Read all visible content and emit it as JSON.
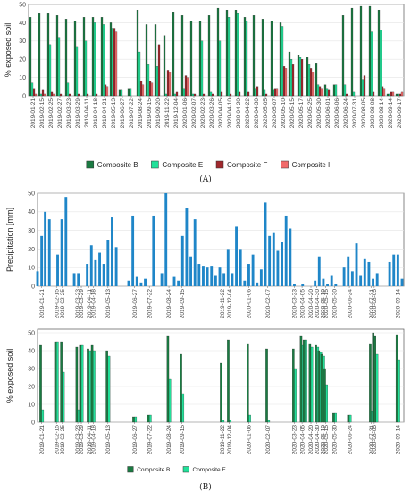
{
  "figure": {
    "panel_a_label": "(A)",
    "panel_b_label": "(B)"
  },
  "chart_data": [
    {
      "type": "bar",
      "id": "A",
      "ylabel": "% exposed soil",
      "xlabel": "",
      "ylim": [
        0,
        50
      ],
      "yticks": [
        0,
        10,
        20,
        30,
        40,
        50
      ],
      "grid": true,
      "legend_position": "bottom",
      "categories": [
        "2019-01-21",
        "2019-02-15",
        "2019-02-25",
        "2019-02-27",
        "2019-03-23",
        "2019-03-29",
        "2019-04-11",
        "2019-04-18",
        "2019-04-21",
        "2019-05-13",
        "2019-06-27",
        "2019-07-22",
        "2019-08-24",
        "2019-09-15",
        "2019-09-20",
        "2019-11-22",
        "2019-12-04",
        "2020-01-06",
        "2020-02-07",
        "2020-02-23",
        "2020-03-26",
        "2020-04-05",
        "2020-04-10",
        "2020-04-20",
        "2020-04-22",
        "2020-04-30",
        "2020-05-05",
        "2020-05-07",
        "2020-05-10",
        "2020-05-15",
        "2020-05-17",
        "2020-05-25",
        "2020-05-30",
        "2020-06-01",
        "2020-06-06",
        "2020-06-24",
        "2020-07-31",
        "2020-08-05",
        "2020-08-08",
        "2020-08-14",
        "2020-09-14",
        "2020-09-17"
      ],
      "series": [
        {
          "name": "Composite B",
          "color": "#1b7a42",
          "values": [
            43,
            45,
            45,
            44,
            42,
            41,
            43,
            43,
            43,
            40,
            3,
            4,
            47,
            39,
            39,
            33,
            46,
            44,
            41,
            41,
            44,
            48,
            47,
            47,
            43,
            44,
            42,
            41,
            40,
            24,
            22,
            21,
            18,
            6,
            6,
            44,
            48,
            49,
            49,
            47,
            1,
            1
          ]
        },
        {
          "name": "Composite E",
          "color": "#22e19a",
          "values": [
            7,
            1,
            28,
            32,
            7,
            27,
            30,
            40,
            39,
            37,
            3,
            4,
            24,
            17,
            16,
            1,
            1,
            4,
            1,
            30,
            2,
            30,
            43,
            45,
            41,
            4,
            3,
            3,
            38,
            20,
            21,
            17,
            6,
            4,
            6,
            6,
            2,
            9,
            35,
            36,
            1,
            1
          ]
        },
        {
          "name": "Composite F",
          "color": "#a0282d",
          "values": [
            4,
            3,
            2,
            1,
            1,
            1,
            1,
            1,
            6,
            37,
            0,
            0,
            8,
            8,
            28,
            14,
            2,
            11,
            1,
            1,
            1,
            2,
            1,
            2,
            2,
            5,
            1,
            4,
            16,
            17,
            20,
            15,
            5,
            3,
            0,
            1,
            0,
            11,
            2,
            5,
            2,
            1
          ]
        },
        {
          "name": "Composite I",
          "color": "#f26b6b",
          "values": [
            1,
            1,
            1,
            0,
            0,
            0,
            0,
            0,
            5,
            35,
            0,
            0,
            6,
            7,
            0,
            13,
            0,
            10,
            0,
            0,
            0,
            0,
            0,
            0,
            0,
            0,
            0,
            4,
            15,
            0,
            0,
            13,
            4,
            0,
            0,
            0,
            0,
            0,
            0,
            4,
            2,
            2
          ]
        }
      ],
      "x_tick_labels": [
        "2019-01-21",
        "2019-02-15",
        "2019-02-25",
        "2019-02-27",
        "2019-03-23",
        "2019-03-29",
        "2019-04-11",
        "2019-04-18",
        "2019-04-21",
        "2019-05-13",
        "2019-06-27",
        "2019-07-22",
        "2019-08-24",
        "2019-09-15",
        "2019-09-20",
        "2019-11-22",
        "2019-12-04",
        "2020-01-06",
        "2020-02-07",
        "2020-02-23",
        "2020-03-26",
        "2020-04-05",
        "2020-04-10",
        "2020-04-20",
        "2020-04-22",
        "2020-04-30",
        "2020-05-05",
        "2020-05-07",
        "2020-05-10",
        "2020-05-15",
        "2020-05-17",
        "2020-05-25",
        "2020-05-30",
        "2020-06-01",
        "2020-06-06",
        "2020-06-24",
        "2020-07-31",
        "2020-08-05",
        "2020-08-08",
        "2020-08-14",
        "2020-09-14",
        "2020-09-17"
      ]
    },
    {
      "type": "bar",
      "id": "B-precip",
      "ylabel": "Precipitation [mm]",
      "xlabel": "",
      "ylim": [
        0,
        50
      ],
      "yticks": [
        0,
        10,
        20,
        30,
        40,
        50
      ],
      "grid": true,
      "color": "#1f86c8",
      "x_start": "2019-01-14",
      "x_end": "2020-09-24",
      "dates": [
        "2019-01-14",
        "2019-01-21",
        "2019-01-27",
        "2019-02-03",
        "2019-02-10",
        "2019-02-17",
        "2019-02-24",
        "2019-03-03",
        "2019-03-10",
        "2019-03-17",
        "2019-03-24",
        "2019-04-01",
        "2019-04-08",
        "2019-04-15",
        "2019-04-22",
        "2019-04-29",
        "2019-05-06",
        "2019-05-13",
        "2019-05-20",
        "2019-05-27",
        "2019-06-03",
        "2019-06-10",
        "2019-06-17",
        "2019-06-24",
        "2019-07-01",
        "2019-07-08",
        "2019-07-15",
        "2019-07-22",
        "2019-07-29",
        "2019-08-05",
        "2019-08-12",
        "2019-08-19",
        "2019-08-26",
        "2019-09-02",
        "2019-09-09",
        "2019-09-16",
        "2019-09-23",
        "2019-09-30",
        "2019-10-07",
        "2019-10-14",
        "2019-10-21",
        "2019-10-28",
        "2019-11-04",
        "2019-11-11",
        "2019-11-18",
        "2019-11-25",
        "2019-12-02",
        "2019-12-09",
        "2019-12-16",
        "2019-12-23",
        "2019-12-30",
        "2020-01-06",
        "2020-01-13",
        "2020-01-20",
        "2020-01-27",
        "2020-02-03",
        "2020-02-10",
        "2020-02-17",
        "2020-02-24",
        "2020-03-02",
        "2020-03-09",
        "2020-03-16",
        "2020-03-23",
        "2020-03-30",
        "2020-04-06",
        "2020-04-13",
        "2020-04-20",
        "2020-04-27",
        "2020-05-04",
        "2020-05-11",
        "2020-05-18",
        "2020-05-25",
        "2020-06-01",
        "2020-06-08",
        "2020-06-15",
        "2020-06-22",
        "2020-06-29",
        "2020-07-06",
        "2020-07-13",
        "2020-07-20",
        "2020-07-27",
        "2020-08-03",
        "2020-08-10",
        "2020-08-17",
        "2020-08-24",
        "2020-08-31",
        "2020-09-07",
        "2020-09-14",
        "2020-09-21"
      ],
      "values": [
        8,
        27,
        40,
        36,
        0,
        17,
        36,
        48,
        0,
        7,
        7,
        0,
        12,
        22,
        14,
        18,
        12,
        25,
        37,
        21,
        0,
        0,
        3,
        38,
        5,
        2,
        4,
        0,
        38,
        0,
        7,
        50,
        0,
        5,
        3,
        27,
        42,
        16,
        36,
        12,
        11,
        10,
        11,
        6,
        10,
        7,
        20,
        7,
        32,
        20,
        3,
        12,
        17,
        2,
        9,
        45,
        27,
        29,
        19,
        24,
        38,
        31,
        1,
        0,
        1,
        0,
        0,
        3,
        16,
        4,
        1,
        6,
        1,
        0,
        10,
        16,
        8,
        23,
        6,
        15,
        13,
        4,
        7,
        0,
        0,
        13,
        17,
        17,
        4
      ]
    },
    {
      "type": "bar",
      "id": "B-soil",
      "ylabel": "% exposed soil",
      "xlabel": "",
      "ylim": [
        0,
        52
      ],
      "yticks": [
        0,
        10,
        20,
        30,
        40,
        50
      ],
      "grid": true,
      "legend_position": "bottom",
      "x_start": "2019-01-14",
      "x_end": "2020-09-24",
      "dates": [
        "2019-01-21",
        "2019-02-15",
        "2019-02-25",
        "2019-03-23",
        "2019-03-29",
        "2019-04-11",
        "2019-04-18",
        "2019-05-13",
        "2019-06-27",
        "2019-07-22",
        "2019-08-24",
        "2019-09-15",
        "2019-11-22",
        "2019-12-04",
        "2020-01-06",
        "2020-02-07",
        "2020-03-23",
        "2020-04-05",
        "2020-04-10",
        "2020-04-20",
        "2020-04-30",
        "2020-05-05",
        "2020-05-10",
        "2020-05-15",
        "2020-05-30",
        "2020-06-24",
        "2020-07-31",
        "2020-08-05",
        "2020-08-08",
        "2020-09-14"
      ],
      "series": [
        {
          "name": "Composite B",
          "color": "#1b7a42",
          "values": [
            43,
            45,
            45,
            42,
            43,
            41,
            43,
            40,
            3,
            4,
            48,
            38,
            33,
            46,
            44,
            41,
            41,
            48,
            46,
            44,
            43,
            40,
            38,
            30,
            5,
            4,
            44,
            50,
            48,
            49
          ]
        },
        {
          "name": "Composite E",
          "color": "#22e19a",
          "values": [
            7,
            45,
            28,
            7,
            43,
            40,
            40,
            37,
            3,
            4,
            24,
            16,
            1,
            1,
            4,
            1,
            30,
            43,
            46,
            42,
            42,
            39,
            37,
            21,
            5,
            4,
            6,
            8,
            38,
            35
          ]
        }
      ],
      "x_tick_labels": [
        "2019-01-21",
        "2019-02-15",
        "2019-02-25",
        "2019-03-23",
        "2019-03-29",
        "2019-04-11",
        "2019-04-18",
        "2019-05-13",
        "2019-06-27",
        "2019-07-22",
        "2019-08-24",
        "2019-09-15",
        "2019-11-22",
        "2019-12-04",
        "2020-01-06",
        "2020-02-07",
        "2020-03-23",
        "2020-04-05",
        "2020-04-20",
        "2020-04-30",
        "2020-05-10",
        "2020-05-15",
        "2020-05-30",
        "2020-06-24",
        "2020-07-31",
        "2020-08-05",
        "2020-09-14"
      ]
    }
  ],
  "precip_x_tick_labels": [
    "2019-01-21",
    "2019-02-15",
    "2019-02-25",
    "2019-03-23",
    "2019-03-29",
    "2019-04-11",
    "2019-04-18",
    "2019-05-13",
    "2019-06-27",
    "2019-07-22",
    "2019-08-24",
    "2019-09-15",
    "2019-11-22",
    "2019-12-04",
    "2020-01-06",
    "2020-02-07",
    "2020-03-23",
    "2020-04-05",
    "2020-04-20",
    "2020-04-30",
    "2020-05-10",
    "2020-05-15",
    "2020-05-30",
    "2020-06-24",
    "2020-07-31",
    "2020-08-05",
    "2020-09-14"
  ]
}
